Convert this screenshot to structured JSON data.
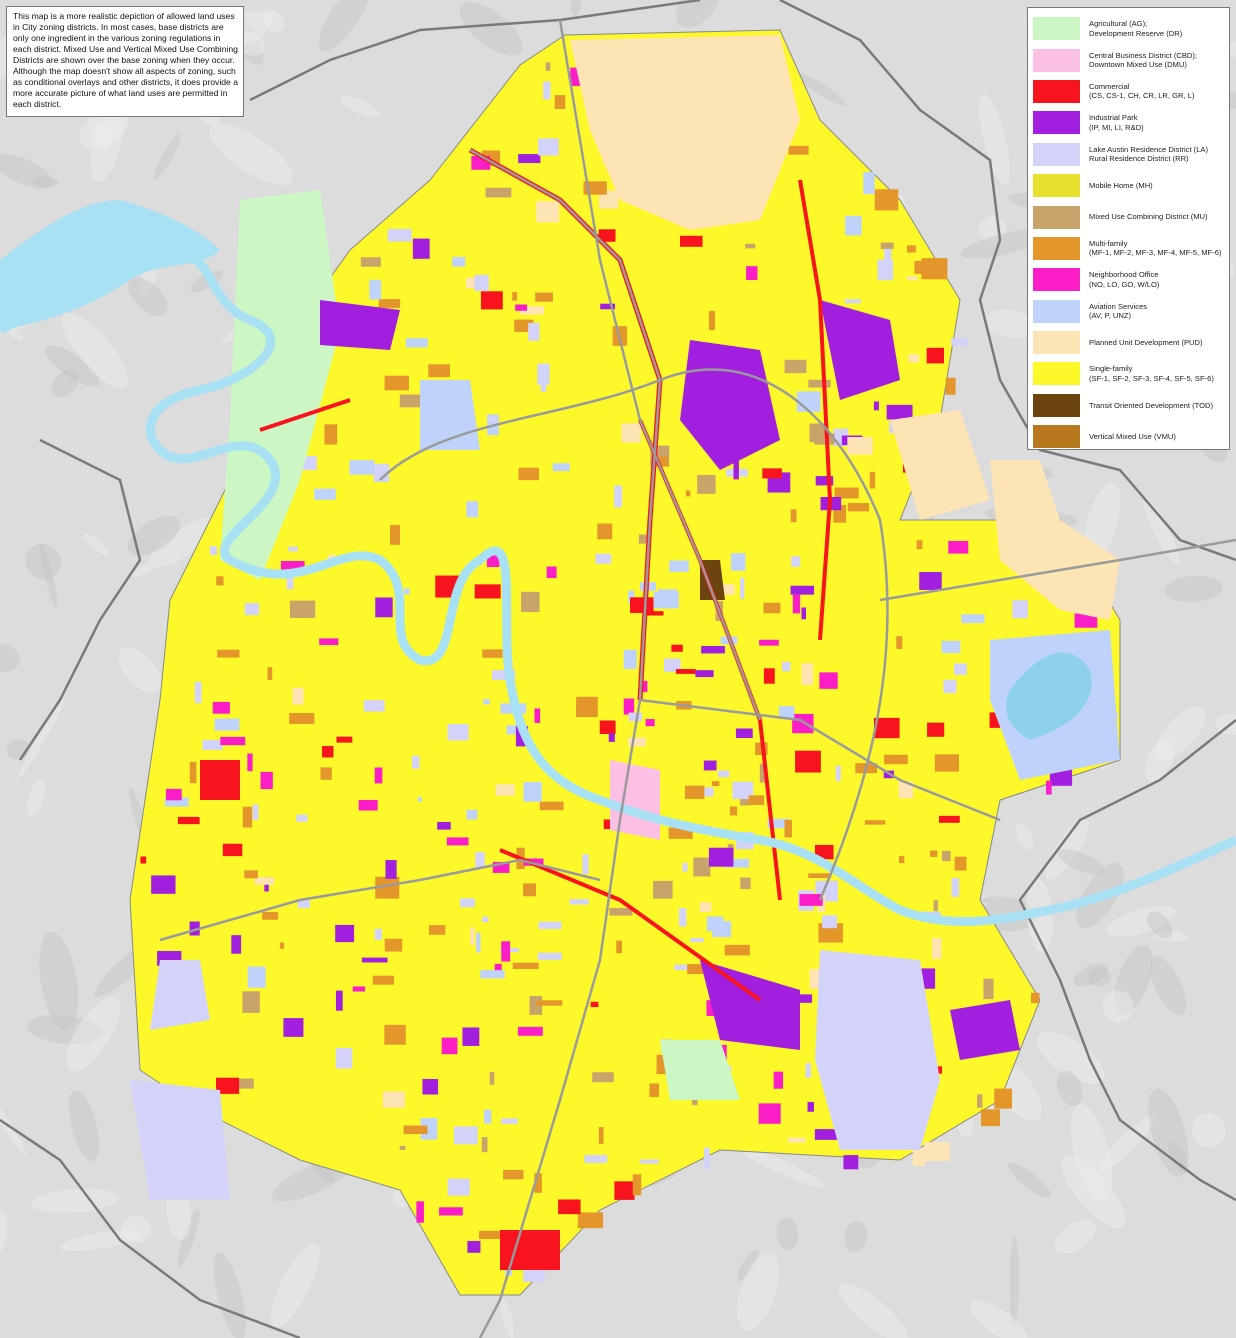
{
  "note": "This map is a more realistic depiction of allowed land uses in City zoning districts.  In most cases, base districts are only one ingredient in the various zoning regulations in each district.  Mixed Use and Vertical Mixed Use Combining Districts are shown over the base zoning when they occur.  Although the map doesn't show all aspects of zoning, such as conditional overlays and other districts, it does provide a more accurate picture of what land uses are permitted in each district.",
  "legend": [
    {
      "line1": "Agricultural (AG);",
      "line2": "Development Reserve (DR)",
      "color": "#ccf7c4"
    },
    {
      "line1": "Central Business District (CBD);",
      "line2": "Downtown Mixed Use (DMU)",
      "color": "#fcc0e4"
    },
    {
      "line1": "Commercial",
      "line2": "(CS, CS-1, CH, CR, LR, GR, L)",
      "color": "#f7141e"
    },
    {
      "line1": "Industrial Park",
      "line2": "(IP, MI, LI, R&D)",
      "color": "#a21fe0"
    },
    {
      "line1": "Lake Austin Residence District (LA)",
      "line2": "Rural Residence District (RR)",
      "color": "#d3d3fa"
    },
    {
      "line1": "Mobile Home (MH)",
      "line2": "",
      "color": "#e6e22e"
    },
    {
      "line1": "Mixed Use Combining District (MU)",
      "line2": "",
      "color": "#c9a46a"
    },
    {
      "line1": "Multi-family",
      "line2": "(MF-1, MF-2, MF-3, MF-4, MF-5, MF-6)",
      "color": "#e4962a"
    },
    {
      "line1": "Neighborhood Office",
      "line2": "(NO, LO, GO, W/LO)",
      "color": "#fb1ec8"
    },
    {
      "line1": "Aviation Services",
      "line2": "(AV, P, UNZ)",
      "color": "#bfd3fa"
    },
    {
      "line1": "Planned Unit Development (PUD)",
      "line2": "",
      "color": "#fde4b4"
    },
    {
      "line1": "Single-family",
      "line2": "(SF-1, SF-2, SF-3, SF-4, SF-5, SF-6)",
      "color": "#fcf82a"
    },
    {
      "line1": "Transit Oriented Development (TOD)",
      "line2": "",
      "color": "#6b4410"
    },
    {
      "line1": "Vertical Mixed Use (VMU)",
      "line2": "",
      "color": "#b8781e"
    }
  ],
  "colors": {
    "hillshade": "#d9d9d9",
    "water": "#a8e0f4",
    "boundary": "#777777",
    "roads": "#9a9a9a"
  }
}
